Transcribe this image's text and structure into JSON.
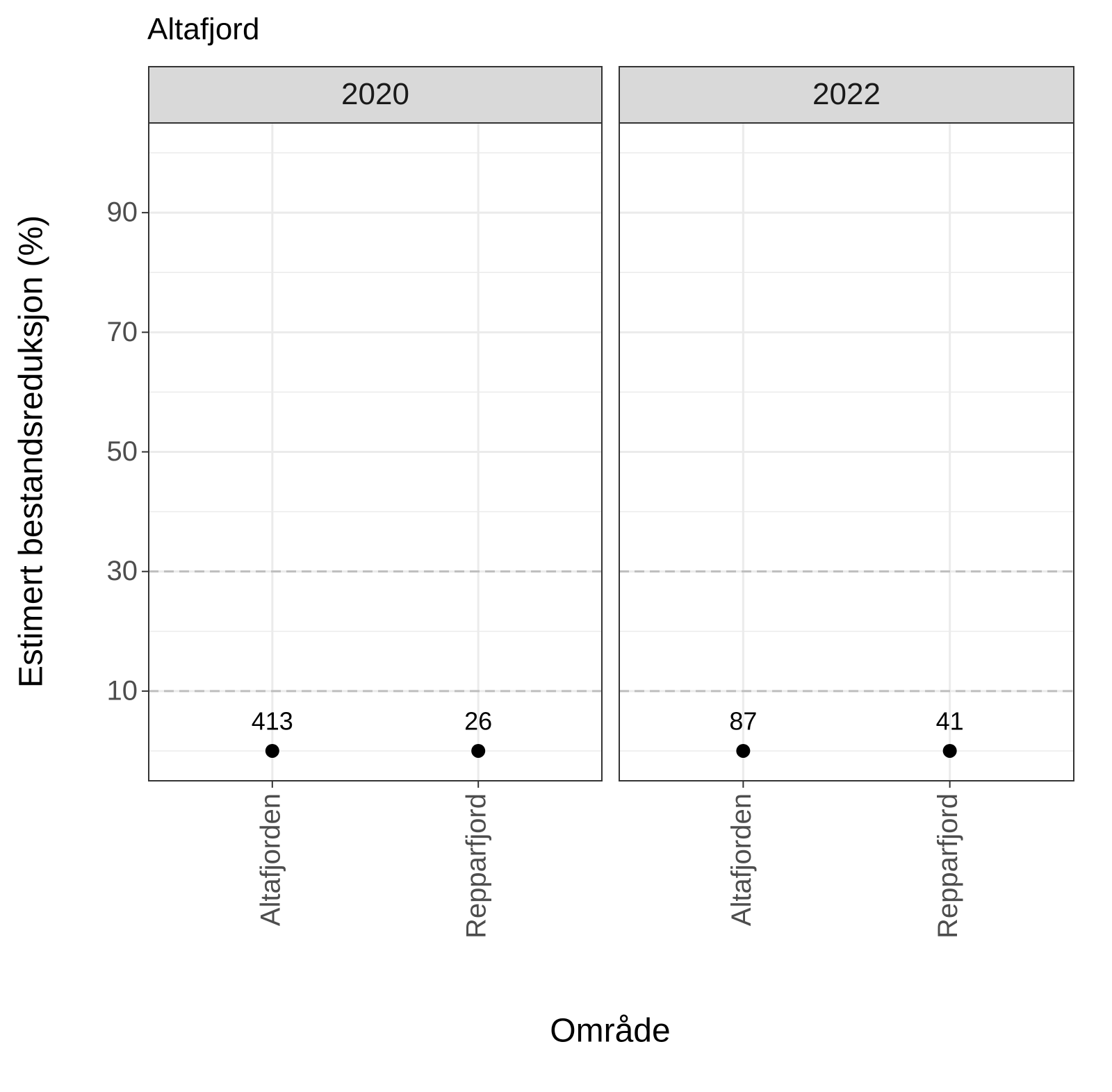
{
  "chart_data": {
    "type": "scatter",
    "title": "Altafjord",
    "xlabel": "Område",
    "ylabel": "Estimert bestandsreduksjon (%)",
    "ylim": [
      -5,
      105
    ],
    "yticks": [
      10,
      30,
      50,
      70,
      90
    ],
    "yminor": [
      0,
      20,
      40,
      60,
      80,
      100
    ],
    "hlines": [
      10,
      30
    ],
    "grid": true,
    "color": "#000000",
    "facets": [
      {
        "label": "2020",
        "categories": [
          "Altafjorden",
          "Repparfjord"
        ],
        "values": [
          0,
          0
        ],
        "n": [
          413,
          26
        ]
      },
      {
        "label": "2022",
        "categories": [
          "Altafjorden",
          "Repparfjord"
        ],
        "values": [
          0,
          0
        ],
        "n": [
          87,
          41
        ]
      }
    ]
  }
}
